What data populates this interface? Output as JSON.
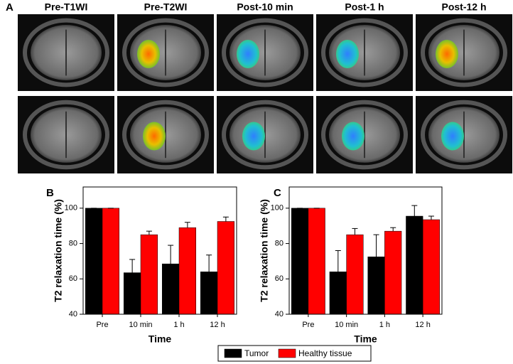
{
  "figure": {
    "panel_labels": [
      "A",
      "B",
      "C"
    ],
    "column_titles": [
      "Pre-T1WI",
      "Pre-T2WI",
      "Post-10 min",
      "Post-1 h",
      "Post-12 h"
    ]
  },
  "chart_data": [
    {
      "type": "bar",
      "ylabel": "T2 relaxation time (%)",
      "xlabel": "Time",
      "categories": [
        "Pre",
        "10 min",
        "1 h",
        "12 h"
      ],
      "series": [
        {
          "name": "Tumor",
          "color": "#000000",
          "values": [
            100,
            63.5,
            68.5,
            64
          ],
          "errors": [
            0,
            7.5,
            10.5,
            9.5
          ]
        },
        {
          "name": "Healthy tissue",
          "color": "#ff0000",
          "values": [
            100,
            85,
            89,
            92.5
          ],
          "errors": [
            0,
            2,
            3,
            2.5
          ]
        }
      ],
      "ylim": [
        40,
        112
      ],
      "yticks": [
        40,
        60,
        80,
        100
      ]
    },
    {
      "type": "bar",
      "ylabel": "T2 relaxation time (%)",
      "xlabel": "Time",
      "categories": [
        "Pre",
        "10 min",
        "1 h",
        "12 h"
      ],
      "series": [
        {
          "color": "#000000",
          "values": [
            100,
            64,
            72.5,
            95.5
          ],
          "errors": [
            0,
            12,
            12.5,
            6
          ]
        },
        {
          "color": "#ff0000",
          "values": [
            100,
            85,
            87,
            93.5
          ],
          "errors": [
            0,
            3.5,
            2,
            2
          ]
        }
      ],
      "ylim": [
        40,
        112
      ],
      "yticks": [
        40,
        60,
        80,
        100
      ]
    }
  ]
}
